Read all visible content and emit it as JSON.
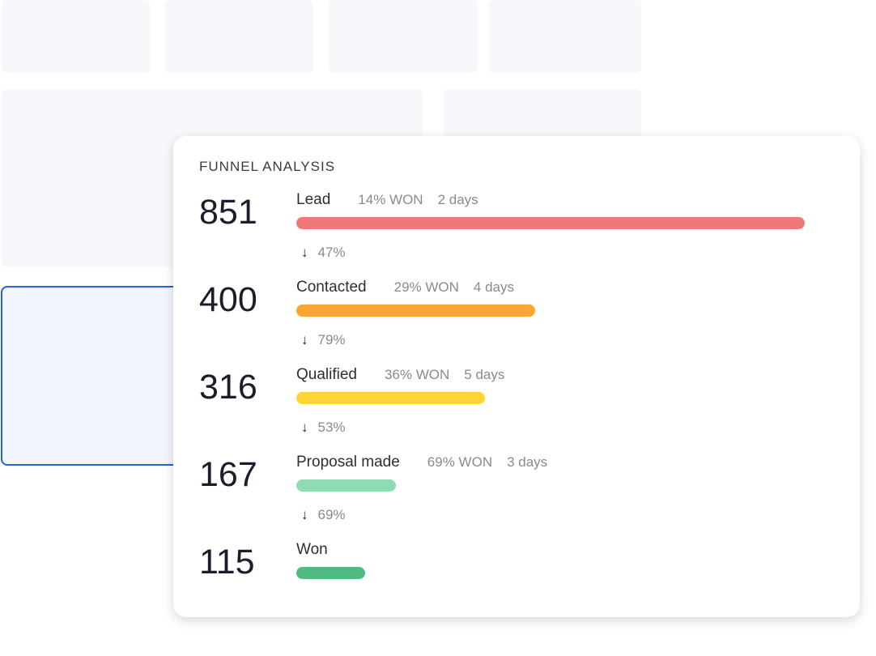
{
  "title": "FUNNEL ANALYSIS",
  "stages": [
    {
      "count": 851,
      "name": "Lead",
      "won": "14% WON",
      "days": "2 days",
      "color": "#ef7878"
    },
    {
      "count": 400,
      "name": "Contacted",
      "won": "29% WON",
      "days": "4 days",
      "color": "#fba535"
    },
    {
      "count": 316,
      "name": "Qualified",
      "won": "36% WON",
      "days": "5 days",
      "color": "#fdd535"
    },
    {
      "count": 167,
      "name": "Proposal made",
      "won": "69% WON",
      "days": "3 days",
      "color": "#8fdbb2"
    },
    {
      "count": 115,
      "name": "Won",
      "color": "#52b982"
    }
  ],
  "conversions": [
    "47%",
    "79%",
    "53%",
    "69%"
  ]
}
